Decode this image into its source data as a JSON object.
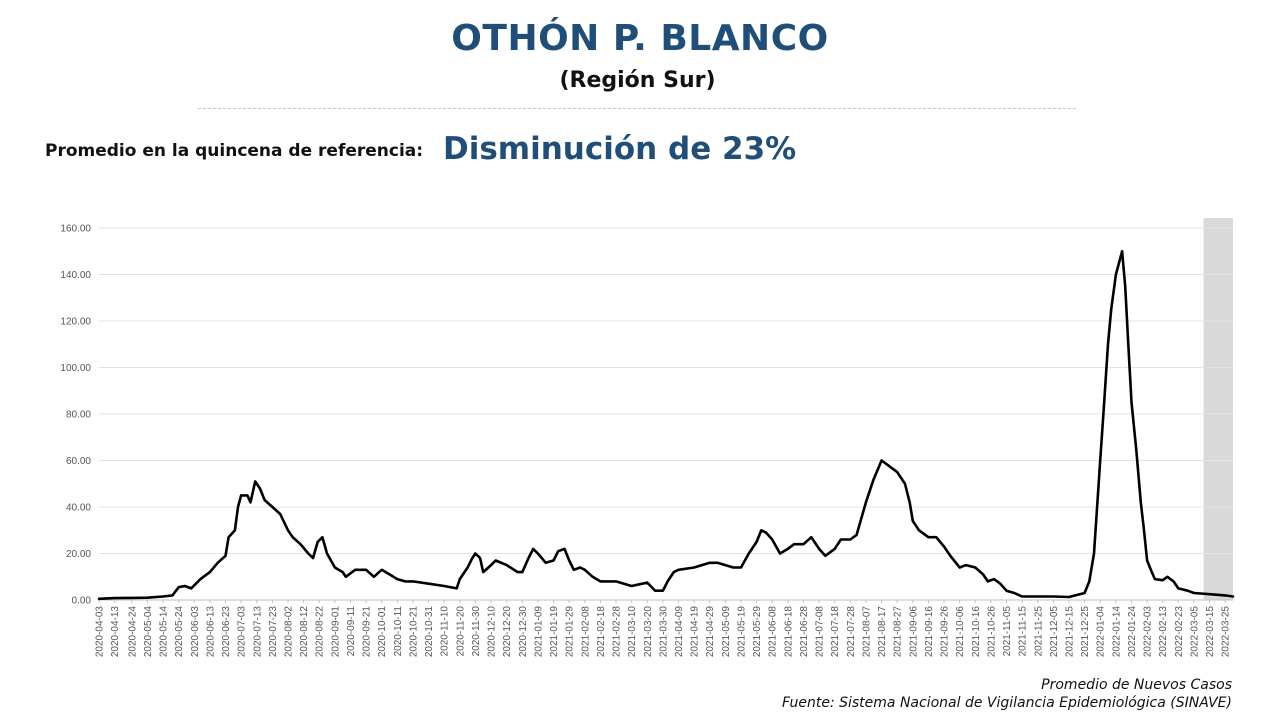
{
  "header": {
    "title": "OTHÓN P. BLANCO",
    "subtitle": "(Región Sur)",
    "reference_label": "Promedio en la quincena de referencia:",
    "reference_value": "Disminución de 23%"
  },
  "footer": {
    "series_note": "Promedio de Nuevos Casos",
    "source": "Fuente: Sistema Nacional de Vigilancia Epidemiológica (SINAVE)"
  },
  "chart_data": {
    "type": "line",
    "title": "",
    "xlabel": "",
    "ylabel": "",
    "ylim": [
      0,
      160
    ],
    "yticks": [
      "0.00",
      "20.00",
      "40.00",
      "60.00",
      "80.00",
      "100.00",
      "120.00",
      "140.00",
      "160.00"
    ],
    "grid": true,
    "line_color": "#000000",
    "shade_color": "#d9d9d9",
    "shaded_range": [
      "2022-03-15",
      "2022-03-30"
    ],
    "xticks": [
      "2020-04-03",
      "2020-04-13",
      "2020-04-24",
      "2020-05-04",
      "2020-05-14",
      "2020-05-24",
      "2020-06-03",
      "2020-06-13",
      "2020-06-23",
      "2020-07-03",
      "2020-07-13",
      "2020-07-23",
      "2020-08-02",
      "2020-08-12",
      "2020-08-22",
      "2020-09-01",
      "2020-09-11",
      "2020-09-21",
      "2020-10-01",
      "2020-10-11",
      "2020-10-21",
      "2020-10-31",
      "2020-11-10",
      "2020-11-20",
      "2020-11-30",
      "2020-12-10",
      "2020-12-20",
      "2020-12-30",
      "2021-01-09",
      "2021-01-19",
      "2021-01-29",
      "2021-02-08",
      "2021-02-18",
      "2021-02-28",
      "2021-03-10",
      "2021-03-20",
      "2021-03-30",
      "2021-04-09",
      "2021-04-19",
      "2021-04-29",
      "2021-05-09",
      "2021-05-19",
      "2021-05-29",
      "2021-06-08",
      "2021-06-18",
      "2021-06-28",
      "2021-07-08",
      "2021-07-18",
      "2021-07-28",
      "2021-08-07",
      "2021-08-17",
      "2021-08-27",
      "2021-09-06",
      "2021-09-16",
      "2021-09-26",
      "2021-10-06",
      "2021-10-16",
      "2021-10-26",
      "2021-11-05",
      "2021-11-15",
      "2021-11-25",
      "2021-12-05",
      "2021-12-15",
      "2021-12-25",
      "2022-01-04",
      "2022-01-14",
      "2022-01-24",
      "2022-02-03",
      "2022-02-13",
      "2022-02-23",
      "2022-03-05",
      "2022-03-15",
      "2022-03-25"
    ],
    "series": [
      {
        "points": [
          [
            "2020-04-03",
            0.5
          ],
          [
            "2020-04-13",
            0.8
          ],
          [
            "2020-04-24",
            0.9
          ],
          [
            "2020-05-04",
            1.0
          ],
          [
            "2020-05-14",
            1.5
          ],
          [
            "2020-05-20",
            2.0
          ],
          [
            "2020-05-24",
            5.5
          ],
          [
            "2020-05-28",
            6.0
          ],
          [
            "2020-06-01",
            5.0
          ],
          [
            "2020-06-07",
            9.0
          ],
          [
            "2020-06-13",
            12.0
          ],
          [
            "2020-06-18",
            16.0
          ],
          [
            "2020-06-23",
            19.0
          ],
          [
            "2020-06-25",
            27.0
          ],
          [
            "2020-06-29",
            30.0
          ],
          [
            "2020-07-01",
            40.0
          ],
          [
            "2020-07-03",
            45.0
          ],
          [
            "2020-07-07",
            45.0
          ],
          [
            "2020-07-09",
            42.0
          ],
          [
            "2020-07-12",
            51.0
          ],
          [
            "2020-07-15",
            48.0
          ],
          [
            "2020-07-18",
            43.0
          ],
          [
            "2020-07-23",
            40.0
          ],
          [
            "2020-07-28",
            37.0
          ],
          [
            "2020-08-02",
            30.0
          ],
          [
            "2020-08-05",
            27.0
          ],
          [
            "2020-08-10",
            24.0
          ],
          [
            "2020-08-15",
            20.0
          ],
          [
            "2020-08-18",
            18.0
          ],
          [
            "2020-08-21",
            25.0
          ],
          [
            "2020-08-24",
            27.0
          ],
          [
            "2020-08-27",
            20.0
          ],
          [
            "2020-09-01",
            14.0
          ],
          [
            "2020-09-06",
            12.0
          ],
          [
            "2020-09-08",
            10.0
          ],
          [
            "2020-09-14",
            13.0
          ],
          [
            "2020-09-21",
            13.0
          ],
          [
            "2020-09-26",
            10.0
          ],
          [
            "2020-10-01",
            13.0
          ],
          [
            "2020-10-06",
            11.0
          ],
          [
            "2020-10-11",
            9.0
          ],
          [
            "2020-10-16",
            8.0
          ],
          [
            "2020-10-21",
            8.0
          ],
          [
            "2020-10-31",
            7.0
          ],
          [
            "2020-11-10",
            6.0
          ],
          [
            "2020-11-18",
            5.0
          ],
          [
            "2020-11-20",
            9.0
          ],
          [
            "2020-11-25",
            14.0
          ],
          [
            "2020-11-28",
            18.0
          ],
          [
            "2020-11-30",
            20.0
          ],
          [
            "2020-12-03",
            18.0
          ],
          [
            "2020-12-05",
            12.0
          ],
          [
            "2020-12-10",
            15.0
          ],
          [
            "2020-12-13",
            17.0
          ],
          [
            "2020-12-20",
            15.0
          ],
          [
            "2020-12-27",
            12.0
          ],
          [
            "2020-12-30",
            12.0
          ],
          [
            "2021-01-03",
            18.0
          ],
          [
            "2021-01-06",
            22.0
          ],
          [
            "2021-01-09",
            20.0
          ],
          [
            "2021-01-14",
            16.0
          ],
          [
            "2021-01-19",
            17.0
          ],
          [
            "2021-01-22",
            21.0
          ],
          [
            "2021-01-26",
            22.0
          ],
          [
            "2021-01-29",
            17.0
          ],
          [
            "2021-02-01",
            13.0
          ],
          [
            "2021-02-05",
            14.0
          ],
          [
            "2021-02-08",
            13.0
          ],
          [
            "2021-02-13",
            10.0
          ],
          [
            "2021-02-18",
            8.0
          ],
          [
            "2021-02-28",
            8.0
          ],
          [
            "2021-03-10",
            6.0
          ],
          [
            "2021-03-20",
            7.5
          ],
          [
            "2021-03-25",
            4.0
          ],
          [
            "2021-03-30",
            4.0
          ],
          [
            "2021-04-02",
            8.0
          ],
          [
            "2021-04-06",
            12.0
          ],
          [
            "2021-04-09",
            13.0
          ],
          [
            "2021-04-19",
            14.0
          ],
          [
            "2021-04-29",
            16.0
          ],
          [
            "2021-05-04",
            16.0
          ],
          [
            "2021-05-09",
            15.0
          ],
          [
            "2021-05-14",
            14.0
          ],
          [
            "2021-05-19",
            14.0
          ],
          [
            "2021-05-24",
            20.0
          ],
          [
            "2021-05-29",
            25.0
          ],
          [
            "2021-06-01",
            30.0
          ],
          [
            "2021-06-04",
            29.0
          ],
          [
            "2021-06-08",
            26.0
          ],
          [
            "2021-06-13",
            20.0
          ],
          [
            "2021-06-18",
            22.0
          ],
          [
            "2021-06-22",
            24.0
          ],
          [
            "2021-06-28",
            24.0
          ],
          [
            "2021-07-03",
            27.0
          ],
          [
            "2021-07-08",
            22.0
          ],
          [
            "2021-07-12",
            19.0
          ],
          [
            "2021-07-18",
            22.0
          ],
          [
            "2021-07-22",
            26.0
          ],
          [
            "2021-07-28",
            26.0
          ],
          [
            "2021-08-01",
            28.0
          ],
          [
            "2021-08-07",
            42.0
          ],
          [
            "2021-08-12",
            52.0
          ],
          [
            "2021-08-17",
            60.0
          ],
          [
            "2021-08-21",
            58.0
          ],
          [
            "2021-08-27",
            55.0
          ],
          [
            "2021-09-01",
            50.0
          ],
          [
            "2021-09-04",
            42.0
          ],
          [
            "2021-09-06",
            34.0
          ],
          [
            "2021-09-10",
            30.0
          ],
          [
            "2021-09-16",
            27.0
          ],
          [
            "2021-09-21",
            27.0
          ],
          [
            "2021-09-26",
            23.0
          ],
          [
            "2021-09-30",
            19.0
          ],
          [
            "2021-10-06",
            14.0
          ],
          [
            "2021-10-10",
            15.0
          ],
          [
            "2021-10-16",
            14.0
          ],
          [
            "2021-10-21",
            11.0
          ],
          [
            "2021-10-24",
            8.0
          ],
          [
            "2021-10-28",
            9.0
          ],
          [
            "2021-11-01",
            7.0
          ],
          [
            "2021-11-05",
            4.0
          ],
          [
            "2021-11-10",
            3.0
          ],
          [
            "2021-11-15",
            1.5
          ],
          [
            "2021-11-25",
            1.5
          ],
          [
            "2021-12-05",
            1.5
          ],
          [
            "2021-12-15",
            1.3
          ],
          [
            "2021-12-25",
            3.0
          ],
          [
            "2021-12-28",
            8.0
          ],
          [
            "2021-12-31",
            20.0
          ],
          [
            "2022-01-02",
            40.0
          ],
          [
            "2022-01-04",
            60.0
          ],
          [
            "2022-01-06",
            80.0
          ],
          [
            "2022-01-09",
            110.0
          ],
          [
            "2022-01-11",
            125.0
          ],
          [
            "2022-01-14",
            140.0
          ],
          [
            "2022-01-16",
            145.0
          ],
          [
            "2022-01-18",
            150.0
          ],
          [
            "2022-01-20",
            135.0
          ],
          [
            "2022-01-22",
            110.0
          ],
          [
            "2022-01-24",
            85.0
          ],
          [
            "2022-01-27",
            65.0
          ],
          [
            "2022-01-30",
            42.0
          ],
          [
            "2022-02-01",
            30.0
          ],
          [
            "2022-02-03",
            17.0
          ],
          [
            "2022-02-06",
            12.0
          ],
          [
            "2022-02-08",
            9.0
          ],
          [
            "2022-02-13",
            8.5
          ],
          [
            "2022-02-16",
            10.0
          ],
          [
            "2022-02-20",
            8.0
          ],
          [
            "2022-02-23",
            5.0
          ],
          [
            "2022-03-01",
            4.0
          ],
          [
            "2022-03-05",
            3.0
          ],
          [
            "2022-03-15",
            2.5
          ],
          [
            "2022-03-25",
            2.0
          ],
          [
            "2022-03-30",
            1.5
          ]
        ]
      }
    ]
  }
}
